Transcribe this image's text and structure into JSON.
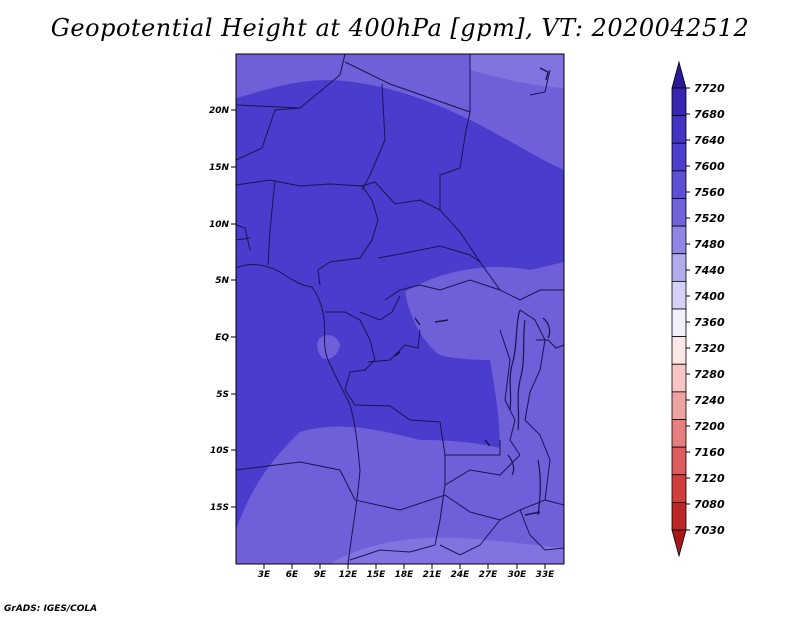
{
  "title": "Geopotential Height at 400hPa [gpm], VT: 2020042512",
  "credit": "GrADS: IGES/COLA",
  "map": {
    "lat_labels": [
      "20N",
      "15N",
      "10N",
      "5N",
      "EQ",
      "5S",
      "10S",
      "15S"
    ],
    "lon_labels": [
      "3E",
      "6E",
      "9E",
      "12E",
      "15E",
      "18E",
      "21E",
      "24E",
      "27E",
      "30E",
      "33E"
    ],
    "fill_colors": {
      "band_7560_7600": "#6f5fd9",
      "band_7600_7640": "#4a3ccc",
      "band_7520_7560": "#8174e0"
    }
  },
  "colorbar": {
    "labels": [
      "7720",
      "7680",
      "7640",
      "7600",
      "7560",
      "7520",
      "7480",
      "7440",
      "7400",
      "7360",
      "7320",
      "7280",
      "7240",
      "7200",
      "7160",
      "7120",
      "7080",
      "7030"
    ],
    "colors": [
      "#2a1a9b",
      "#3626b3",
      "#4233c4",
      "#4d3fcd",
      "#5c4fd4",
      "#6f62da",
      "#8f86e3",
      "#b2abec",
      "#d5d2f6",
      "#f2f0fc",
      "#fce6e6",
      "#f6c6c6",
      "#eea3a3",
      "#e57f7f",
      "#dc5c5c",
      "#d03d3d",
      "#bd2626",
      "#a81818"
    ]
  }
}
